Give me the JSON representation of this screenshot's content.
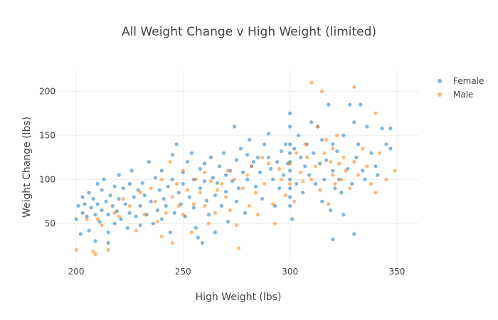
{
  "chart_data": {
    "type": "scatter",
    "title": "All Weight Change v High Weight (limited)",
    "xlabel": "High Weight (lbs)",
    "ylabel": "Weight Change (lbs)",
    "xlim": [
      191,
      360
    ],
    "ylim": [
      5,
      223
    ],
    "xticks": [
      200,
      250,
      300,
      350
    ],
    "yticks": [
      50,
      100,
      150,
      200
    ],
    "grid": true,
    "legend_position": "top-right",
    "series": [
      {
        "name": "Female",
        "color": "#1f77b4",
        "points": [
          [
            200,
            55
          ],
          [
            201,
            70
          ],
          [
            202,
            38
          ],
          [
            203,
            62
          ],
          [
            203,
            80
          ],
          [
            204,
            72
          ],
          [
            205,
            58
          ],
          [
            206,
            85
          ],
          [
            206,
            42
          ],
          [
            207,
            68
          ],
          [
            208,
            78
          ],
          [
            209,
            60
          ],
          [
            209,
            30
          ],
          [
            210,
            95
          ],
          [
            210,
            72
          ],
          [
            211,
            52
          ],
          [
            212,
            88
          ],
          [
            212,
            65
          ],
          [
            213,
            100
          ],
          [
            214,
            75
          ],
          [
            215,
            60
          ],
          [
            215,
            40
          ],
          [
            215,
            28
          ],
          [
            216,
            82
          ],
          [
            217,
            70
          ],
          [
            218,
            50
          ],
          [
            218,
            92
          ],
          [
            219,
            64
          ],
          [
            220,
            105
          ],
          [
            220,
            78
          ],
          [
            221,
            55
          ],
          [
            222,
            90
          ],
          [
            223,
            72
          ],
          [
            224,
            45
          ],
          [
            225,
            95
          ],
          [
            225,
            62
          ],
          [
            226,
            110
          ],
          [
            227,
            80
          ],
          [
            228,
            58
          ],
          [
            229,
            88
          ],
          [
            230,
            48
          ],
          [
            230,
            70
          ],
          [
            231,
            96
          ],
          [
            232,
            82
          ],
          [
            233,
            60
          ],
          [
            234,
            120
          ],
          [
            235,
            75
          ],
          [
            236,
            50
          ],
          [
            237,
            102
          ],
          [
            238,
            65
          ],
          [
            239,
            88
          ],
          [
            240,
            55
          ],
          [
            240,
            110
          ],
          [
            241,
            78
          ],
          [
            242,
            70
          ],
          [
            243,
            92
          ],
          [
            244,
            40
          ],
          [
            245,
            100
          ],
          [
            245,
            128
          ],
          [
            246,
            62
          ],
          [
            247,
            140
          ],
          [
            248,
            85
          ],
          [
            249,
            72
          ],
          [
            250,
            95
          ],
          [
            250,
            108
          ],
          [
            251,
            58
          ],
          [
            252,
            120
          ],
          [
            253,
            80
          ],
          [
            254,
            130
          ],
          [
            255,
            68
          ],
          [
            255,
            100
          ],
          [
            256,
            45
          ],
          [
            257,
            34
          ],
          [
            258,
            112
          ],
          [
            258,
            90
          ],
          [
            259,
            28
          ],
          [
            260,
            98
          ],
          [
            260,
            118
          ],
          [
            261,
            76
          ],
          [
            262,
            60
          ],
          [
            263,
            125
          ],
          [
            264,
            102
          ],
          [
            265,
            82
          ],
          [
            265,
            40
          ],
          [
            266,
            96
          ],
          [
            267,
            115
          ],
          [
            268,
            70
          ],
          [
            269,
            130
          ],
          [
            270,
            105
          ],
          [
            270,
            86
          ],
          [
            271,
            52
          ],
          [
            272,
            110
          ],
          [
            273,
            98
          ],
          [
            274,
            160
          ],
          [
            275,
            122
          ],
          [
            275,
            75
          ],
          [
            276,
            90
          ],
          [
            277,
            135
          ],
          [
            278,
            108
          ],
          [
            279,
            62
          ],
          [
            280,
            128
          ],
          [
            280,
            100
          ],
          [
            281,
            145
          ],
          [
            282,
            115
          ],
          [
            283,
            120
          ],
          [
            284,
            92
          ],
          [
            285,
            125
          ],
          [
            286,
            108
          ],
          [
            287,
            78
          ],
          [
            288,
            140
          ],
          [
            290,
            152
          ],
          [
            290,
            125
          ],
          [
            291,
            112
          ],
          [
            292,
            100
          ],
          [
            293,
            70
          ],
          [
            294,
            120
          ],
          [
            295,
            90
          ],
          [
            296,
            132
          ],
          [
            297,
            105
          ],
          [
            298,
            140
          ],
          [
            299,
            118
          ],
          [
            300,
            160
          ],
          [
            300,
            140
          ],
          [
            300,
            130
          ],
          [
            300,
            120
          ],
          [
            300,
            110
          ],
          [
            300,
            100
          ],
          [
            300,
            90
          ],
          [
            300,
            80
          ],
          [
            300,
            70
          ],
          [
            300,
            175
          ],
          [
            301,
            55
          ],
          [
            302,
            135
          ],
          [
            303,
            95
          ],
          [
            304,
            150
          ],
          [
            305,
            125
          ],
          [
            306,
            85
          ],
          [
            307,
            115
          ],
          [
            308,
            140
          ],
          [
            309,
            105
          ],
          [
            310,
            165
          ],
          [
            311,
            130
          ],
          [
            312,
            95
          ],
          [
            313,
            160
          ],
          [
            314,
            118
          ],
          [
            315,
            75
          ],
          [
            315,
            145
          ],
          [
            316,
            100
          ],
          [
            317,
            122
          ],
          [
            318,
            185
          ],
          [
            319,
            65
          ],
          [
            320,
            110
          ],
          [
            320,
            140
          ],
          [
            320,
            32
          ],
          [
            321,
            90
          ],
          [
            322,
            132
          ],
          [
            323,
            100
          ],
          [
            324,
            85
          ],
          [
            325,
            150
          ],
          [
            325,
            60
          ],
          [
            327,
            112
          ],
          [
            328,
            185
          ],
          [
            329,
            95
          ],
          [
            330,
            165
          ],
          [
            330,
            38
          ],
          [
            331,
            125
          ],
          [
            332,
            140
          ],
          [
            333,
            185
          ],
          [
            334,
            110
          ],
          [
            335,
            100
          ],
          [
            336,
            160
          ],
          [
            338,
            130
          ],
          [
            340,
            115
          ],
          [
            341,
            105
          ],
          [
            343,
            158
          ],
          [
            345,
            140
          ],
          [
            347,
            135
          ],
          [
            347,
            158
          ]
        ]
      },
      {
        "name": "Male",
        "color": "#ff7f0e",
        "points": [
          [
            200,
            20
          ],
          [
            205,
            55
          ],
          [
            208,
            18
          ],
          [
            209,
            15
          ],
          [
            210,
            55
          ],
          [
            212,
            48
          ],
          [
            215,
            20
          ],
          [
            218,
            62
          ],
          [
            220,
            58
          ],
          [
            222,
            78
          ],
          [
            225,
            70
          ],
          [
            228,
            42
          ],
          [
            230,
            85
          ],
          [
            232,
            60
          ],
          [
            235,
            90
          ],
          [
            237,
            75
          ],
          [
            238,
            52
          ],
          [
            240,
            100
          ],
          [
            240,
            35
          ],
          [
            242,
            62
          ],
          [
            244,
            120
          ],
          [
            245,
            28
          ],
          [
            245,
            80
          ],
          [
            247,
            95
          ],
          [
            248,
            70
          ],
          [
            250,
            60
          ],
          [
            250,
            110
          ],
          [
            252,
            88
          ],
          [
            254,
            40
          ],
          [
            255,
            72
          ],
          [
            256,
            100
          ],
          [
            258,
            85
          ],
          [
            260,
            70
          ],
          [
            260,
            108
          ],
          [
            262,
            50
          ],
          [
            263,
            98
          ],
          [
            265,
            62
          ],
          [
            266,
            88
          ],
          [
            268,
            95
          ],
          [
            270,
            80
          ],
          [
            271,
            110
          ],
          [
            272,
            65
          ],
          [
            274,
            100
          ],
          [
            275,
            48
          ],
          [
            276,
            22
          ],
          [
            278,
            90
          ],
          [
            280,
            105
          ],
          [
            281,
            70
          ],
          [
            282,
            115
          ],
          [
            284,
            85
          ],
          [
            285,
            60
          ],
          [
            287,
            125
          ],
          [
            288,
            95
          ],
          [
            290,
            118
          ],
          [
            292,
            72
          ],
          [
            293,
            50
          ],
          [
            295,
            112
          ],
          [
            296,
            100
          ],
          [
            298,
            82
          ],
          [
            300,
            118
          ],
          [
            300,
            95
          ],
          [
            302,
            75
          ],
          [
            303,
            130
          ],
          [
            305,
            108
          ],
          [
            306,
            98
          ],
          [
            307,
            140
          ],
          [
            308,
            125
          ],
          [
            310,
            210
          ],
          [
            310,
            100
          ],
          [
            312,
            115
          ],
          [
            313,
            160
          ],
          [
            314,
            88
          ],
          [
            315,
            200
          ],
          [
            316,
            130
          ],
          [
            317,
            145
          ],
          [
            318,
            72
          ],
          [
            319,
            120
          ],
          [
            320,
            105
          ],
          [
            320,
            135
          ],
          [
            321,
            95
          ],
          [
            322,
            150
          ],
          [
            323,
            118
          ],
          [
            324,
            100
          ],
          [
            325,
            125
          ],
          [
            326,
            110
          ],
          [
            328,
            90
          ],
          [
            330,
            205
          ],
          [
            330,
            120
          ],
          [
            332,
            105
          ],
          [
            334,
            135
          ],
          [
            336,
            115
          ],
          [
            338,
            95
          ],
          [
            340,
            175
          ],
          [
            340,
            85
          ],
          [
            342,
            130
          ],
          [
            345,
            100
          ],
          [
            349,
            110
          ]
        ]
      }
    ]
  }
}
